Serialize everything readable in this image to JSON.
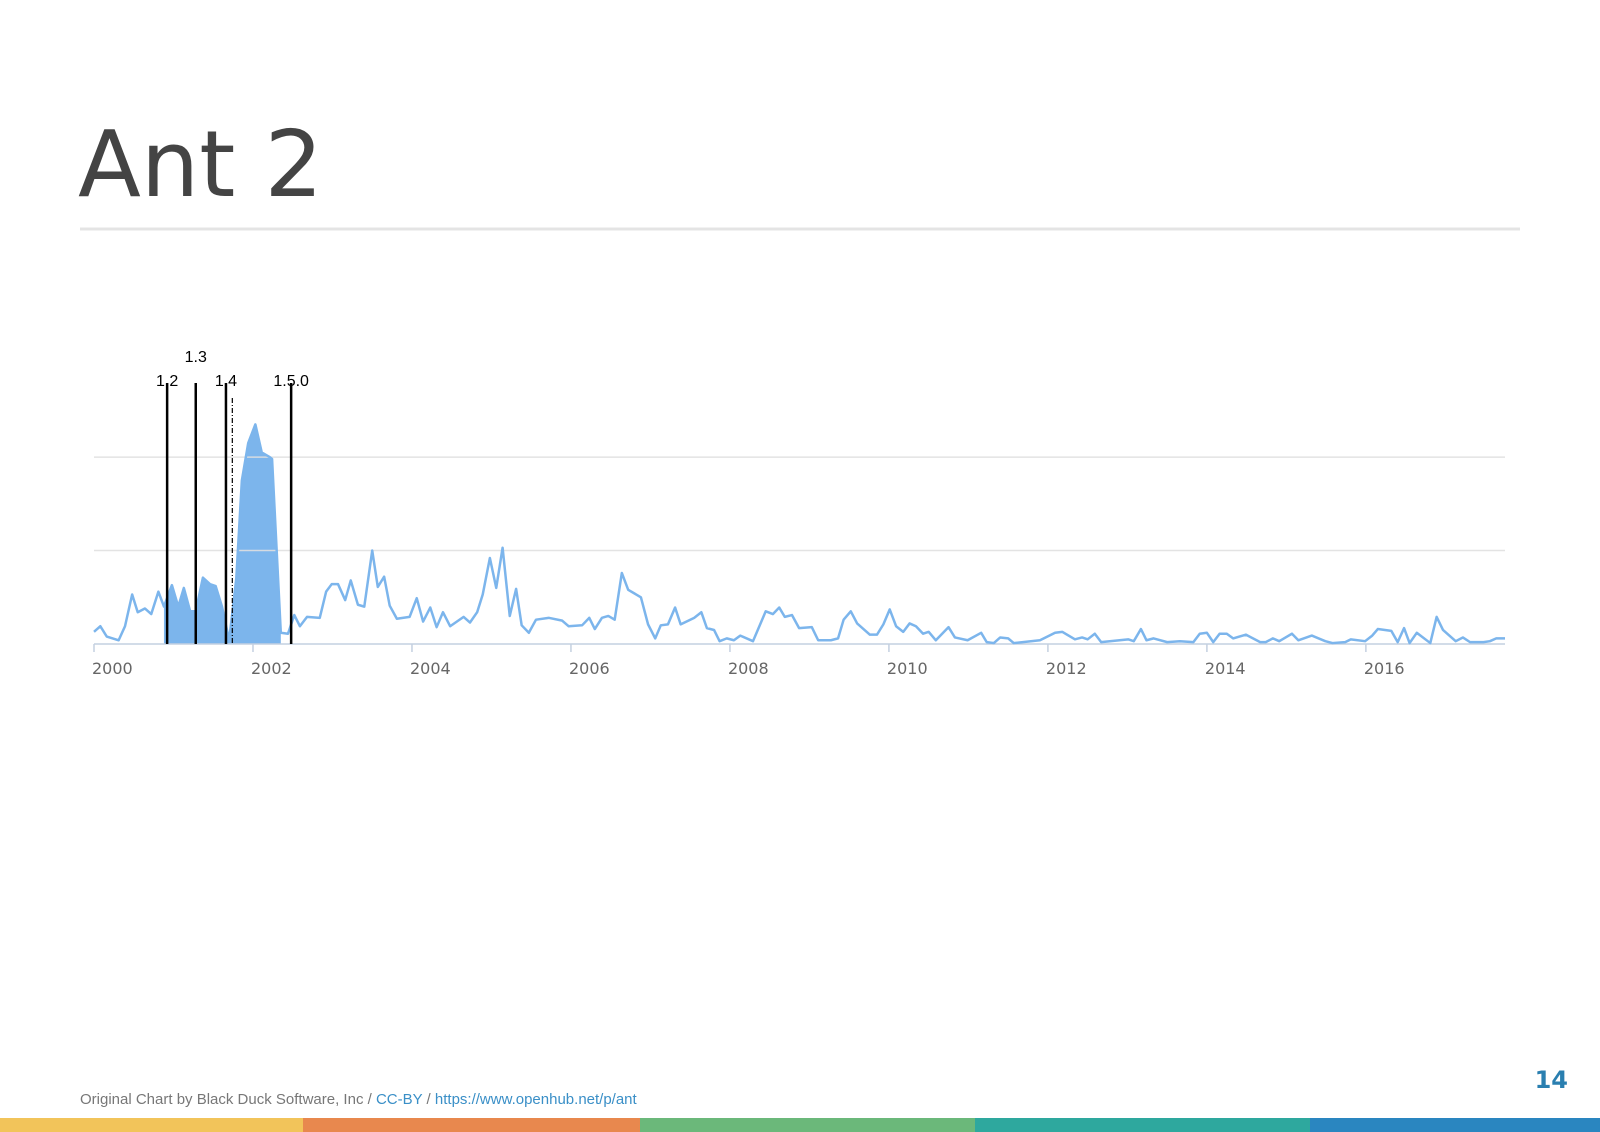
{
  "slide": {
    "title": "Ant 2",
    "page_number": "14"
  },
  "footer": {
    "credit": "Original Chart by Black Duck Software, Inc",
    "separator": "/",
    "license": "CC-BY",
    "url": "https://www.openhub.net/p/ant"
  },
  "chart_data": {
    "type": "line",
    "color": "#7cb5ec",
    "grid": true,
    "y_tick_labels": false,
    "xlim": [
      2000,
      2017.75
    ],
    "xticks": [
      2000,
      2002,
      2004,
      2006,
      2008,
      2010,
      2012,
      2014,
      2016
    ],
    "ylim": [
      0,
      2.6
    ],
    "yticks": [
      0,
      1,
      2
    ],
    "shaded_range": [
      2000.88,
      2002.35
    ],
    "releases": [
      {
        "x": 2000.92,
        "label": "1.2"
      },
      {
        "x": 2001.28,
        "label": "1.3"
      },
      {
        "x": 2001.66,
        "label": "1.4"
      },
      {
        "x": 2002.48,
        "label": "1.5.0"
      }
    ],
    "dashed_markers": [
      2001.74
    ],
    "x": [
      2000.0,
      2000.08,
      2000.16,
      2000.31,
      2000.39,
      2000.48,
      2000.55,
      2000.64,
      2000.72,
      2000.81,
      2000.88,
      2000.98,
      2001.06,
      2001.13,
      2001.21,
      2001.28,
      2001.37,
      2001.46,
      2001.53,
      2001.61,
      2001.7,
      2001.79,
      2001.86,
      2001.94,
      2002.03,
      2002.11,
      2002.21,
      2002.24,
      2002.35,
      2002.44,
      2002.52,
      2002.59,
      2002.68,
      2002.84,
      2002.92,
      2002.99,
      2003.07,
      2003.16,
      2003.23,
      2003.32,
      2003.4,
      2003.5,
      2003.57,
      2003.65,
      2003.72,
      2003.81,
      2003.97,
      2004.06,
      2004.14,
      2004.23,
      2004.31,
      2004.39,
      2004.48,
      2004.65,
      2004.73,
      2004.82,
      2004.89,
      2004.98,
      2005.06,
      2005.14,
      2005.23,
      2005.31,
      2005.38,
      2005.47,
      2005.56,
      2005.72,
      2005.89,
      2005.97,
      2006.14,
      2006.23,
      2006.3,
      2006.39,
      2006.47,
      2006.55,
      2006.64,
      2006.72,
      2006.88,
      2006.97,
      2007.06,
      2007.13,
      2007.22,
      2007.31,
      2007.38,
      2007.55,
      2007.64,
      2007.71,
      2007.8,
      2007.87,
      2007.96,
      2008.05,
      2008.13,
      2008.29,
      2008.45,
      2008.54,
      2008.62,
      2008.69,
      2008.78,
      2008.87,
      2009.03,
      2009.11,
      2009.27,
      2009.36,
      2009.43,
      2009.52,
      2009.6,
      2009.76,
      2009.85,
      2009.93,
      2010.01,
      2010.09,
      2010.18,
      2010.26,
      2010.34,
      2010.43,
      2010.5,
      2010.59,
      2010.75,
      2010.83,
      2010.99,
      2011.16,
      2011.23,
      2011.32,
      2011.4,
      2011.5,
      2011.57,
      2011.9,
      2012.09,
      2012.18,
      2012.34,
      2012.43,
      2012.5,
      2012.59,
      2012.67,
      2013.01,
      2013.08,
      2013.17,
      2013.24,
      2013.33,
      2013.5,
      2013.66,
      2013.83,
      2013.91,
      2014.0,
      2014.08,
      2014.16,
      2014.25,
      2014.33,
      2014.49,
      2014.67,
      2014.74,
      2014.83,
      2014.91,
      2015.07,
      2015.15,
      2015.32,
      2015.49,
      2015.58,
      2015.74,
      2015.81,
      2015.99,
      2016.08,
      2016.15,
      2016.32,
      2016.4,
      2016.48,
      2016.55,
      2016.64,
      2016.81,
      2016.89,
      2016.97,
      2017.13,
      2017.22,
      2017.31,
      2017.48,
      2017.56,
      2017.64,
      2017.75
    ],
    "values": [
      0.13,
      0.19,
      0.08,
      0.04,
      0.19,
      0.53,
      0.34,
      0.38,
      0.32,
      0.56,
      0.4,
      0.63,
      0.4,
      0.6,
      0.35,
      0.35,
      0.71,
      0.64,
      0.62,
      0.4,
      0.04,
      0.7,
      1.75,
      2.15,
      2.35,
      2.05,
      2.0,
      1.98,
      0.12,
      0.11,
      0.31,
      0.19,
      0.29,
      0.28,
      0.56,
      0.64,
      0.64,
      0.47,
      0.68,
      0.42,
      0.4,
      1.0,
      0.61,
      0.72,
      0.41,
      0.27,
      0.29,
      0.49,
      0.24,
      0.39,
      0.18,
      0.34,
      0.19,
      0.29,
      0.23,
      0.34,
      0.53,
      0.92,
      0.6,
      1.03,
      0.3,
      0.59,
      0.2,
      0.12,
      0.26,
      0.28,
      0.25,
      0.19,
      0.2,
      0.28,
      0.16,
      0.28,
      0.3,
      0.26,
      0.76,
      0.58,
      0.5,
      0.21,
      0.06,
      0.2,
      0.21,
      0.39,
      0.21,
      0.28,
      0.34,
      0.17,
      0.15,
      0.03,
      0.06,
      0.04,
      0.09,
      0.03,
      0.35,
      0.32,
      0.39,
      0.29,
      0.31,
      0.17,
      0.18,
      0.04,
      0.04,
      0.06,
      0.26,
      0.35,
      0.22,
      0.1,
      0.1,
      0.21,
      0.37,
      0.19,
      0.13,
      0.22,
      0.19,
      0.11,
      0.13,
      0.04,
      0.18,
      0.07,
      0.04,
      0.12,
      0.02,
      0.01,
      0.07,
      0.06,
      0.01,
      0.04,
      0.12,
      0.13,
      0.05,
      0.07,
      0.05,
      0.11,
      0.02,
      0.05,
      0.03,
      0.16,
      0.04,
      0.06,
      0.02,
      0.03,
      0.02,
      0.11,
      0.12,
      0.02,
      0.11,
      0.11,
      0.06,
      0.1,
      0.02,
      0.02,
      0.06,
      0.03,
      0.11,
      0.04,
      0.09,
      0.03,
      0.01,
      0.02,
      0.05,
      0.03,
      0.09,
      0.16,
      0.14,
      0.02,
      0.17,
      0.01,
      0.12,
      0.01,
      0.29,
      0.15,
      0.03,
      0.07,
      0.02,
      0.02,
      0.03,
      0.06,
      0.06
    ]
  }
}
